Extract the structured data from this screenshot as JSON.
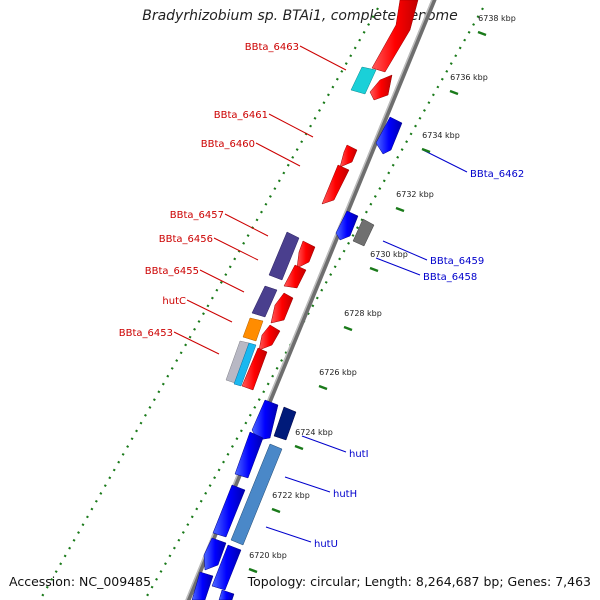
{
  "title": "Bradyrhizobium sp. BTAi1, complete genome",
  "footer": {
    "accession": "Accession: NC_009485",
    "summary": "Topology: circular; Length: 8,264,687 bp; Genes: 7,463"
  },
  "colors": {
    "backbone": "#777777",
    "tick": "#1a7a1a",
    "forward_label": "#cc0000",
    "reverse_label": "#0000cc"
  },
  "ruler": [
    "6720 kbp",
    "6722 kbp",
    "6724 kbp",
    "6726 kbp",
    "6728 kbp",
    "6730 kbp",
    "6732 kbp",
    "6734 kbp",
    "6736 kbp",
    "6738 kbp"
  ],
  "forward_labels": [
    "BBta_6463",
    "BBta_6461",
    "BBta_6460",
    "BBta_6457",
    "BBta_6456",
    "BBta_6455",
    "hutC",
    "BBta_6453"
  ],
  "reverse_labels": [
    "BBta_6462",
    "BBta_6459",
    "BBta_6458",
    "hutI",
    "hutH",
    "hutU"
  ]
}
